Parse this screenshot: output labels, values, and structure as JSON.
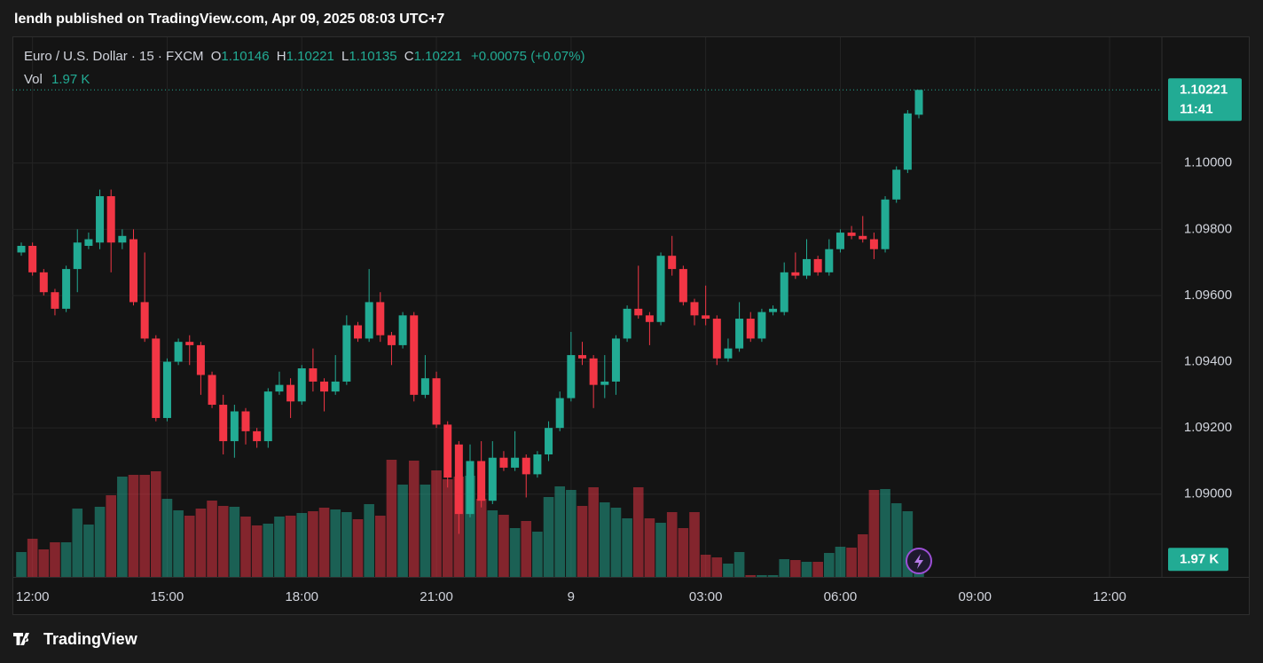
{
  "header": {
    "title": "lendh published on TradingView.com, Apr 09, 2025 08:03 UTC+7",
    "symbol": "Euro / U.S. Dollar · 15 · FXCM",
    "o": "O",
    "h": "H",
    "l": "L",
    "c": "C",
    "change": "+0.00075 (+0.07%)",
    "vol": "Vol",
    "countdown": "11:41"
  },
  "footer": {
    "brand": "TradingView"
  },
  "chart_data": {
    "type": "candlestick",
    "x": [
      "11:45",
      "12:00",
      "12:15",
      "12:30",
      "12:45",
      "13:00",
      "13:15",
      "13:30",
      "13:45",
      "14:00",
      "14:15",
      "14:30",
      "14:45",
      "15:00",
      "15:15",
      "15:30",
      "15:45",
      "16:00",
      "16:15",
      "16:30",
      "16:45",
      "17:00",
      "17:15",
      "17:30",
      "17:45",
      "18:00",
      "18:15",
      "18:30",
      "18:45",
      "19:00",
      "19:15",
      "19:30",
      "19:45",
      "20:00",
      "20:15",
      "20:30",
      "20:45",
      "21:00",
      "21:15",
      "21:30",
      "21:45",
      "22:00",
      "22:15",
      "22:30",
      "22:45",
      "23:00",
      "23:15",
      "23:30",
      "23:45",
      "00:00",
      "00:15",
      "00:30",
      "00:45",
      "01:00",
      "01:15",
      "01:30",
      "01:45",
      "02:00",
      "02:15",
      "02:30",
      "02:45",
      "03:00",
      "03:15",
      "03:30",
      "03:45",
      "04:00",
      "04:15",
      "04:30",
      "04:45",
      "05:00",
      "05:15",
      "05:30",
      "05:45",
      "06:00",
      "06:15",
      "06:30",
      "06:45",
      "07:00",
      "07:15",
      "07:30",
      "07:45"
    ],
    "open": [
      1.0973,
      1.0975,
      1.0967,
      1.0961,
      1.0956,
      1.0968,
      1.0975,
      1.0976,
      1.099,
      1.0976,
      1.0977,
      1.0958,
      1.0947,
      1.0923,
      1.094,
      1.0946,
      1.0945,
      1.0936,
      1.0927,
      1.0916,
      1.0925,
      1.0919,
      1.0916,
      1.0931,
      1.0933,
      1.0928,
      1.0938,
      1.0934,
      1.0931,
      1.0934,
      1.0951,
      1.0947,
      1.0958,
      1.0948,
      1.0945,
      1.0954,
      1.093,
      1.0935,
      1.0921,
      1.0915,
      1.0894,
      1.091,
      1.0898,
      1.0911,
      1.0908,
      1.0911,
      1.0906,
      1.0912,
      1.092,
      1.0929,
      1.0942,
      1.0941,
      1.0933,
      1.0934,
      1.0947,
      1.0956,
      1.0954,
      1.0952,
      1.0972,
      1.0968,
      1.0958,
      1.0954,
      1.0953,
      1.0941,
      1.0944,
      1.0953,
      1.0947,
      1.0955,
      1.0955,
      1.0967,
      1.0966,
      1.0971,
      1.0967,
      1.0974,
      1.0979,
      1.0978,
      1.0977,
      1.0974,
      1.0989,
      1.0998,
      1.10146
    ],
    "high": [
      1.0976,
      1.0976,
      1.0968,
      1.0962,
      1.0969,
      1.098,
      1.0979,
      1.0992,
      1.0992,
      1.098,
      1.098,
      1.0973,
      1.0948,
      1.0941,
      1.0947,
      1.0948,
      1.0946,
      1.0937,
      1.093,
      1.0927,
      1.0926,
      1.092,
      1.0932,
      1.0937,
      1.0935,
      1.0939,
      1.0944,
      1.0935,
      1.0942,
      1.0954,
      1.0952,
      1.0968,
      1.0961,
      1.0949,
      1.0955,
      1.0955,
      1.0942,
      1.0937,
      1.0922,
      1.0916,
      1.0915,
      1.0916,
      1.0916,
      1.0913,
      1.0919,
      1.0912,
      1.0913,
      1.0922,
      1.0931,
      1.0949,
      1.0946,
      1.0942,
      1.0942,
      1.0948,
      1.0957,
      1.0969,
      1.0955,
      1.0973,
      1.0978,
      1.0969,
      1.0959,
      1.0963,
      1.0954,
      1.0947,
      1.0958,
      1.0955,
      1.0956,
      1.0957,
      1.097,
      1.0973,
      1.0977,
      1.0972,
      1.0977,
      1.098,
      1.0981,
      1.0984,
      1.0979,
      1.099,
      1.0999,
      1.1016,
      1.10221
    ],
    "low": [
      1.0972,
      1.0966,
      1.096,
      1.0954,
      1.0955,
      1.0961,
      1.0974,
      1.0974,
      1.0967,
      1.0974,
      1.0957,
      1.0946,
      1.0922,
      1.0922,
      1.0939,
      1.0939,
      1.093,
      1.0926,
      1.0912,
      1.0911,
      1.0915,
      1.0914,
      1.0914,
      1.093,
      1.0923,
      1.0927,
      1.0931,
      1.0925,
      1.093,
      1.0933,
      1.0946,
      1.0946,
      1.0946,
      1.0939,
      1.0944,
      1.0928,
      1.0929,
      1.092,
      1.0902,
      1.0888,
      1.0893,
      1.0896,
      1.0897,
      1.0907,
      1.0907,
      1.0899,
      1.0905,
      1.091,
      1.0919,
      1.0928,
      1.0939,
      1.0926,
      1.0929,
      1.093,
      1.0946,
      1.0953,
      1.0945,
      1.0951,
      1.0966,
      1.0957,
      1.0951,
      1.0951,
      1.0939,
      1.094,
      1.0943,
      1.0946,
      1.0946,
      1.0954,
      1.0954,
      1.0965,
      1.0965,
      1.0966,
      1.0966,
      1.0973,
      1.0977,
      1.0976,
      1.0971,
      1.0973,
      1.0988,
      1.0997,
      1.10135
    ],
    "close": [
      1.0975,
      1.0967,
      1.0961,
      1.0956,
      1.0968,
      1.0976,
      1.0977,
      1.099,
      1.0976,
      1.0978,
      1.0958,
      1.0947,
      1.0923,
      1.094,
      1.0946,
      1.0945,
      1.0936,
      1.0927,
      1.0916,
      1.0925,
      1.0919,
      1.0916,
      1.0931,
      1.0933,
      1.0928,
      1.0938,
      1.0934,
      1.0931,
      1.0934,
      1.0951,
      1.0947,
      1.0958,
      1.0948,
      1.0945,
      1.0954,
      1.093,
      1.0935,
      1.0921,
      1.0905,
      1.0894,
      1.091,
      1.0898,
      1.0911,
      1.0908,
      1.0911,
      1.0906,
      1.0912,
      1.092,
      1.0929,
      1.0942,
      1.0941,
      1.0933,
      1.0934,
      1.0947,
      1.0956,
      1.0954,
      1.0952,
      1.0972,
      1.0968,
      1.0958,
      1.0954,
      1.0953,
      1.0941,
      1.0944,
      1.0953,
      1.0947,
      1.0955,
      1.0956,
      1.0967,
      1.0966,
      1.0971,
      1.0967,
      1.0974,
      1.0979,
      1.0978,
      1.0977,
      1.0974,
      1.0989,
      1.0998,
      1.1015,
      1.10221
    ],
    "volume": [
      2800,
      4300,
      3100,
      3900,
      3900,
      7700,
      5900,
      7900,
      9200,
      11300,
      11500,
      11500,
      11900,
      8800,
      7500,
      6900,
      7700,
      8600,
      8000,
      7900,
      6800,
      5800,
      6000,
      6800,
      6900,
      7200,
      7400,
      7800,
      7600,
      7300,
      6500,
      8200,
      6900,
      13200,
      10400,
      13100,
      10400,
      12000,
      11000,
      11300,
      11400,
      8800,
      7500,
      7000,
      5500,
      6300,
      5100,
      9000,
      10200,
      9800,
      8000,
      10100,
      8400,
      7800,
      6600,
      10100,
      6600,
      6100,
      7300,
      5500,
      7300,
      2500,
      2200,
      1500,
      2800,
      200,
      200,
      200,
      2000,
      1900,
      1700,
      1700,
      2700,
      3400,
      3300,
      4800,
      9800,
      9900,
      8300,
      7400,
      1970
    ],
    "volume_labels": [
      null,
      null,
      null,
      null,
      null,
      null,
      null,
      null,
      null,
      null,
      null,
      null,
      null,
      null,
      null,
      null,
      null,
      null,
      null,
      null,
      null,
      null,
      null,
      null,
      null,
      null,
      null,
      null,
      null,
      null,
      null,
      null,
      null,
      null,
      null,
      null,
      null,
      null,
      null,
      null,
      null,
      null,
      null,
      null,
      null,
      null,
      null,
      null,
      null,
      null,
      null,
      null,
      null,
      null,
      null,
      null,
      null,
      null,
      null,
      null,
      null,
      null,
      null,
      null,
      null,
      null,
      null,
      null,
      null,
      null,
      null,
      null,
      null,
      null,
      null,
      null,
      null,
      null,
      null,
      null,
      "1.97 K"
    ],
    "ylim": [
      1.0875,
      1.1038
    ],
    "yticks": [
      {
        "value": 1.09,
        "label": "1.09000"
      },
      {
        "value": 1.092,
        "label": "1.09200"
      },
      {
        "value": 1.094,
        "label": "1.09400"
      },
      {
        "value": 1.096,
        "label": "1.09600"
      },
      {
        "value": 1.098,
        "label": "1.09800"
      },
      {
        "value": 1.1,
        "label": "1.10000"
      }
    ],
    "xticks": [
      "12:00",
      "15:00",
      "18:00",
      "21:00",
      {
        "value": "00:00",
        "label": "9"
      },
      "03:00",
      "06:00",
      "09:00",
      "12:00"
    ],
    "up_color": "#22ab94",
    "down_color": "#f23645",
    "grid": true
  }
}
